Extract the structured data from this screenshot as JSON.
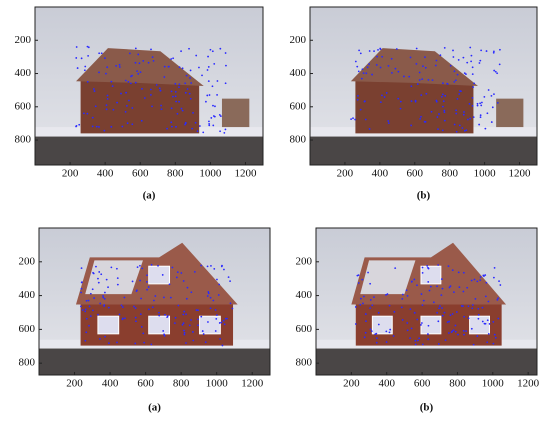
{
  "chart_data": [
    {
      "type": "image",
      "caption": "(a)",
      "xlim": [
        0,
        1300
      ],
      "ylim": [
        0,
        950
      ],
      "xticks": [
        200,
        400,
        600,
        800,
        1000,
        1200
      ],
      "yticks": [
        200,
        400,
        600,
        800
      ]
    },
    {
      "type": "image",
      "caption": "(b)",
      "xlim": [
        0,
        1300
      ],
      "ylim": [
        0,
        950
      ],
      "xticks": [
        200,
        400,
        600,
        800,
        1000,
        1200
      ],
      "yticks": [
        200,
        400,
        600,
        800
      ]
    },
    {
      "type": "image",
      "caption": "(a)",
      "xlim": [
        0,
        1300
      ],
      "ylim": [
        0,
        870
      ],
      "xticks": [
        200,
        400,
        600,
        800,
        1000,
        1200
      ],
      "yticks": [
        200,
        400,
        600,
        800
      ]
    },
    {
      "type": "image",
      "caption": "(b)",
      "xlim": [
        0,
        1250
      ],
      "ylim": [
        0,
        870
      ],
      "xticks": [
        200,
        400,
        600,
        800,
        1000,
        1200
      ],
      "yticks": [
        200,
        400,
        600,
        800
      ]
    }
  ]
}
